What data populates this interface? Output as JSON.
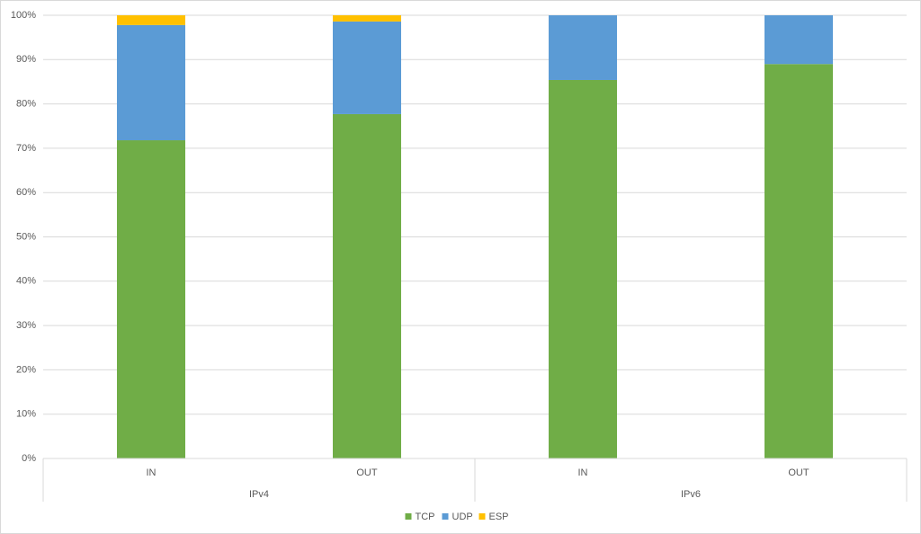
{
  "chart_data": {
    "type": "stacked_bar",
    "groups": [
      {
        "name": "IPv4",
        "categories": [
          "IN",
          "OUT"
        ]
      },
      {
        "name": "IPv6",
        "categories": [
          "IN",
          "OUT"
        ]
      }
    ],
    "series": [
      {
        "name": "TCP",
        "color": "#70ad47",
        "values": [
          71.8,
          77.7,
          85.4,
          89.0
        ]
      },
      {
        "name": "UDP",
        "color": "#5b9bd5",
        "values": [
          26.0,
          20.9,
          14.6,
          11.0
        ]
      },
      {
        "name": "ESP",
        "color": "#ffc000",
        "values": [
          2.2,
          1.4,
          0,
          0
        ]
      }
    ],
    "ylim": [
      0,
      100
    ],
    "yticks": [
      {
        "value": 0,
        "label": "0%"
      },
      {
        "value": 10,
        "label": "10%"
      },
      {
        "value": 20,
        "label": "20%"
      },
      {
        "value": 30,
        "label": "30%"
      },
      {
        "value": 40,
        "label": "40%"
      },
      {
        "value": 50,
        "label": "50%"
      },
      {
        "value": 60,
        "label": "60%"
      },
      {
        "value": 70,
        "label": "70%"
      },
      {
        "value": 80,
        "label": "80%"
      },
      {
        "value": 90,
        "label": "90%"
      },
      {
        "value": 100,
        "label": "100%"
      }
    ],
    "grid": true,
    "legend": "bottom"
  }
}
